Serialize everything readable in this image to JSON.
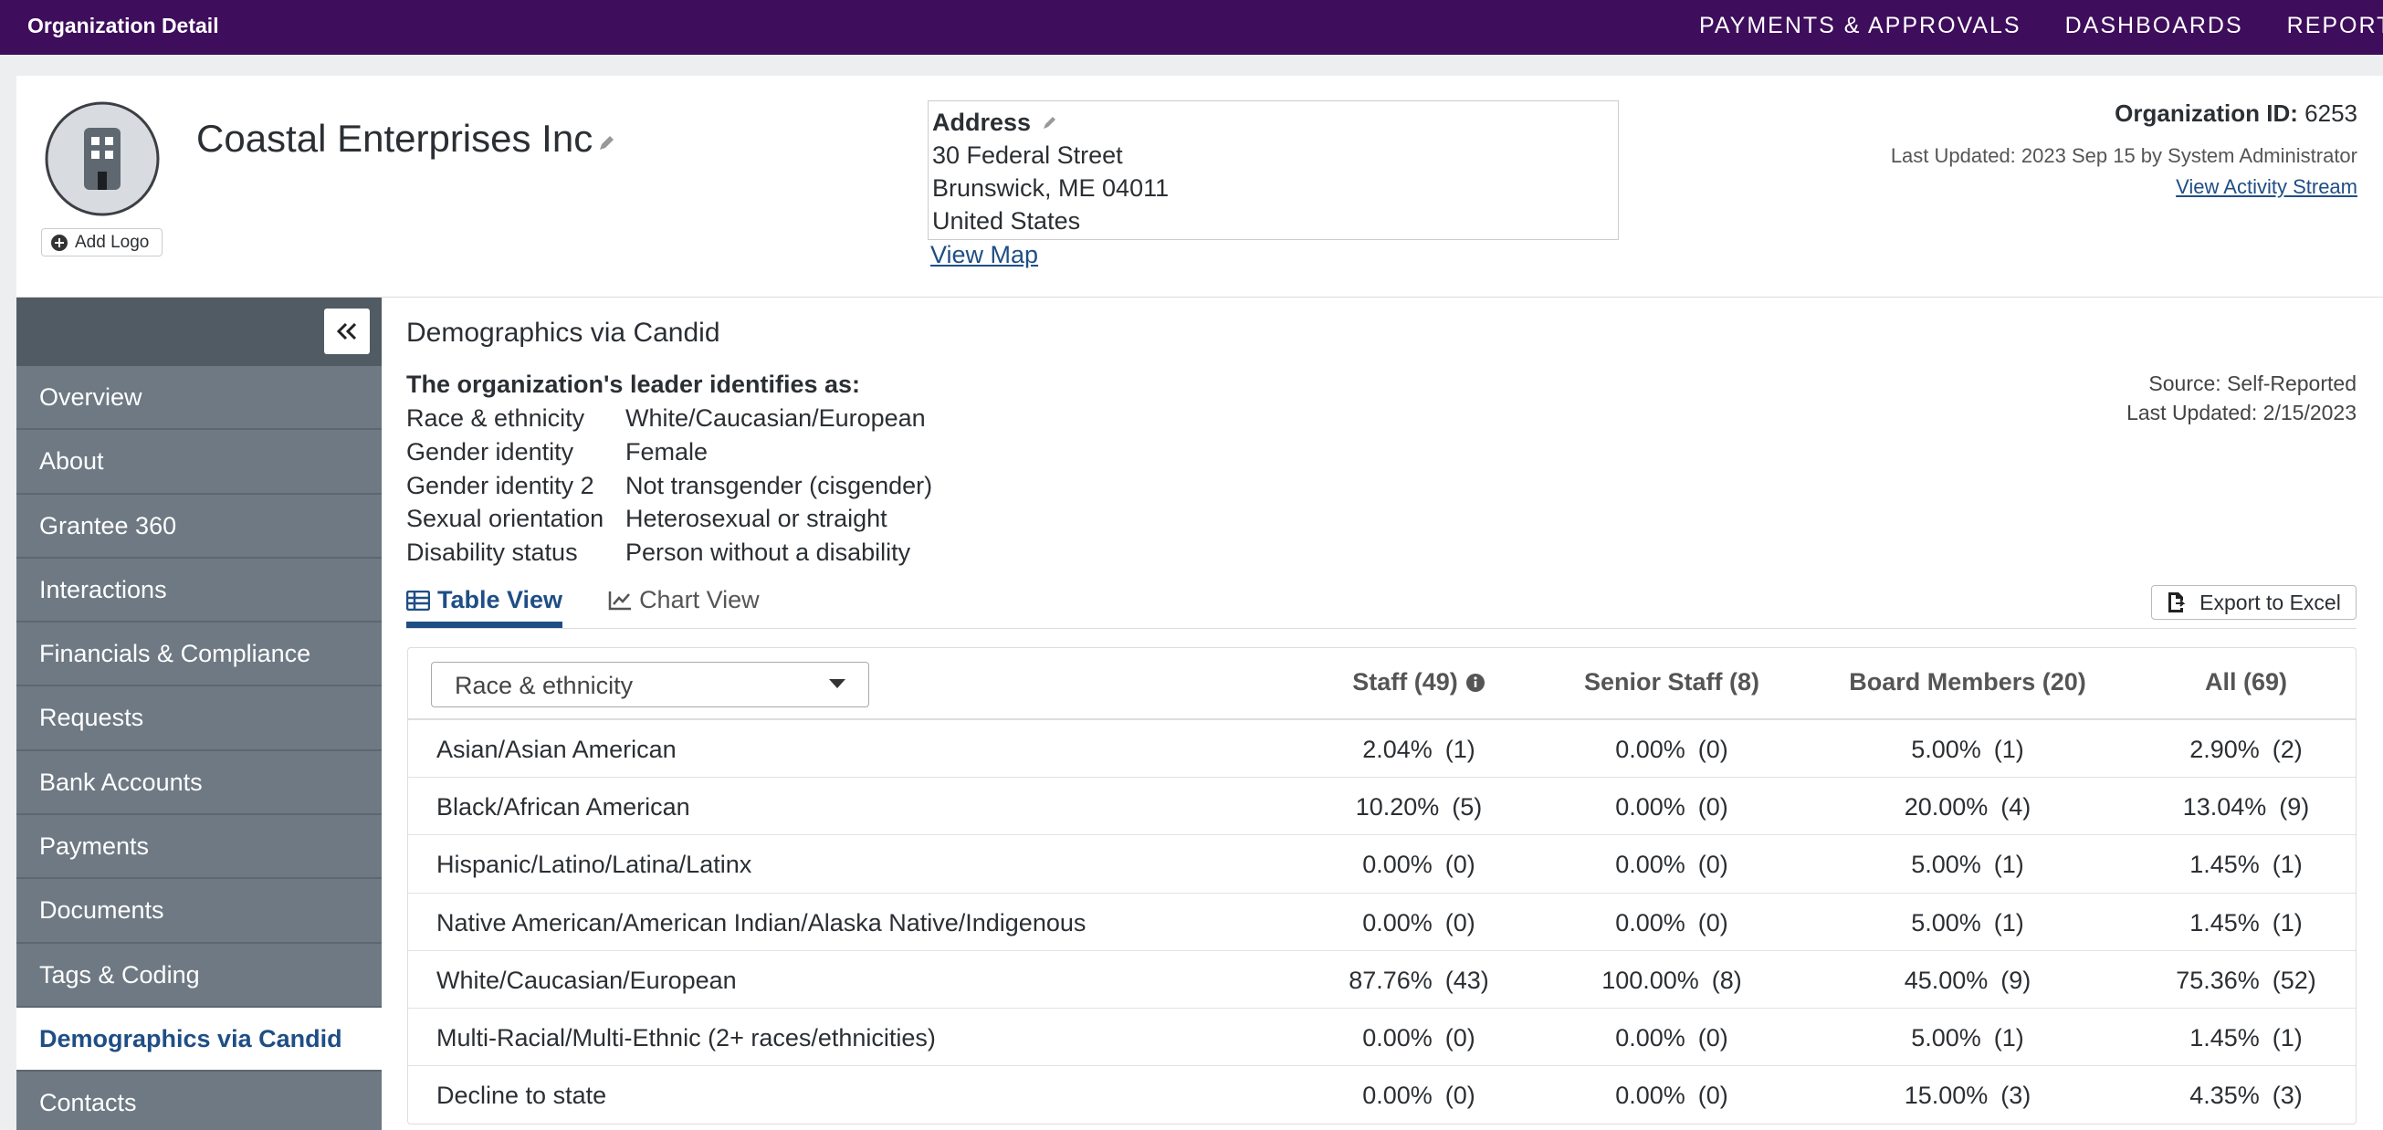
{
  "topbar": {
    "title": "Organization Detail",
    "nav": [
      "PAYMENTS & APPROVALS",
      "DASHBOARDS",
      "REPORTS"
    ]
  },
  "org": {
    "name": "Coastal Enterprises Inc",
    "add_logo": "Add Logo",
    "address_label": "Address",
    "address_lines": [
      "30 Federal Street",
      "Brunswick, ME 04011",
      "United States"
    ],
    "view_map": "View Map",
    "id_label": "Organization ID:",
    "id": "6253",
    "last_updated": "Last Updated: 2023 Sep 15 by System Administrator",
    "activity_link": "View Activity Stream"
  },
  "sidebar": {
    "items": [
      "Overview",
      "About",
      "Grantee 360",
      "Interactions",
      "Financials & Compliance",
      "Requests",
      "Bank Accounts",
      "Payments",
      "Documents",
      "Tags & Coding",
      "Demographics via Candid",
      "Contacts"
    ],
    "active": 10
  },
  "section": {
    "title": "Demographics via Candid",
    "leader_heading": "The organization's leader identifies as:",
    "leader": [
      [
        "Race & ethnicity",
        "White/Caucasian/European"
      ],
      [
        "Gender identity",
        "Female"
      ],
      [
        "Gender identity 2",
        "Not transgender (cisgender)"
      ],
      [
        "Sexual orientation",
        "Heterosexual or straight"
      ],
      [
        "Disability status",
        "Person without a disability"
      ]
    ],
    "source": "Source: Self-Reported",
    "updated": "Last Updated: 2/15/2023"
  },
  "tabs": {
    "items": [
      "Table View",
      "Chart View"
    ],
    "active": 0,
    "export": "Export to Excel"
  },
  "table": {
    "filter": "Race & ethnicity",
    "columns": [
      "Staff (49)",
      "Senior Staff (8)",
      "Board Members (20)",
      "All (69)"
    ],
    "rows": [
      {
        "label": "Asian/Asian American",
        "cells": [
          [
            "2.04%",
            "(1)"
          ],
          [
            "0.00%",
            "(0)"
          ],
          [
            "5.00%",
            "(1)"
          ],
          [
            "2.90%",
            "(2)"
          ]
        ]
      },
      {
        "label": "Black/African American",
        "cells": [
          [
            "10.20%",
            "(5)"
          ],
          [
            "0.00%",
            "(0)"
          ],
          [
            "20.00%",
            "(4)"
          ],
          [
            "13.04%",
            "(9)"
          ]
        ]
      },
      {
        "label": "Hispanic/Latino/Latina/Latinx",
        "cells": [
          [
            "0.00%",
            "(0)"
          ],
          [
            "0.00%",
            "(0)"
          ],
          [
            "5.00%",
            "(1)"
          ],
          [
            "1.45%",
            "(1)"
          ]
        ]
      },
      {
        "label": "Native American/American Indian/Alaska Native/Indigenous",
        "cells": [
          [
            "0.00%",
            "(0)"
          ],
          [
            "0.00%",
            "(0)"
          ],
          [
            "5.00%",
            "(1)"
          ],
          [
            "1.45%",
            "(1)"
          ]
        ]
      },
      {
        "label": "White/Caucasian/European",
        "cells": [
          [
            "87.76%",
            "(43)"
          ],
          [
            "100.00%",
            "(8)"
          ],
          [
            "45.00%",
            "(9)"
          ],
          [
            "75.36%",
            "(52)"
          ]
        ]
      },
      {
        "label": "Multi-Racial/Multi-Ethnic (2+ races/ethnicities)",
        "cells": [
          [
            "0.00%",
            "(0)"
          ],
          [
            "0.00%",
            "(0)"
          ],
          [
            "5.00%",
            "(1)"
          ],
          [
            "1.45%",
            "(1)"
          ]
        ]
      },
      {
        "label": "Decline to state",
        "cells": [
          [
            "0.00%",
            "(0)"
          ],
          [
            "0.00%",
            "(0)"
          ],
          [
            "15.00%",
            "(3)"
          ],
          [
            "4.35%",
            "(3)"
          ]
        ]
      }
    ]
  }
}
